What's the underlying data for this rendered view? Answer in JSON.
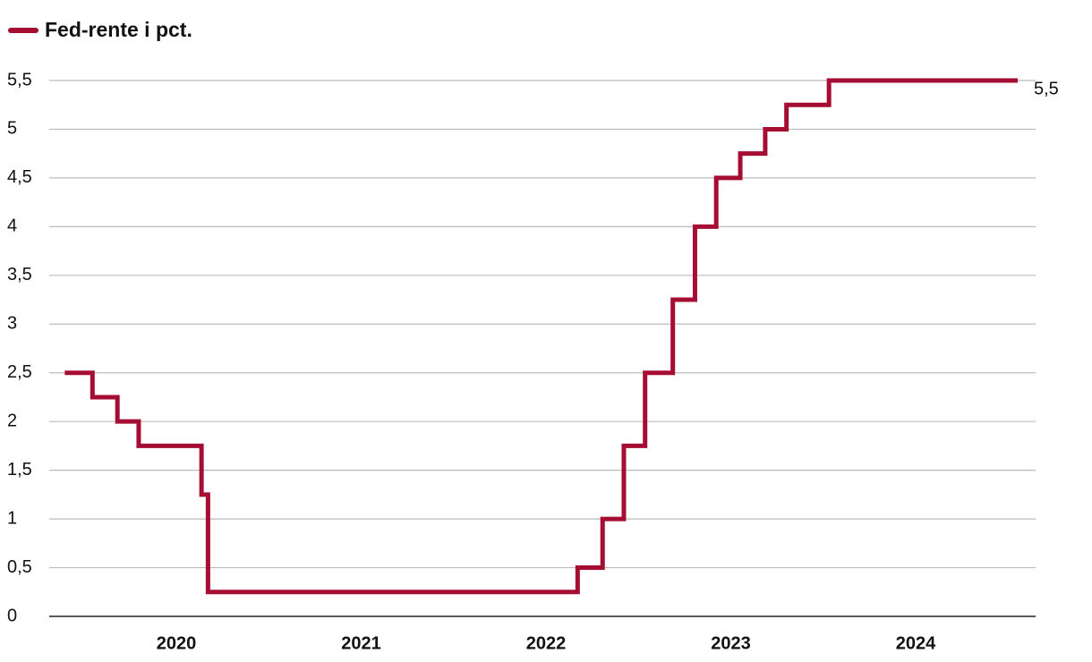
{
  "chart_data": {
    "type": "step-line",
    "x": [
      2019.43,
      2019.58,
      2019.715,
      2019.83,
      2020.17,
      2020.205,
      2022.205,
      2022.34,
      2022.455,
      2022.57,
      2022.72,
      2022.84,
      2022.955,
      2023.085,
      2023.22,
      2023.335,
      2023.565,
      2024.586
    ],
    "series": [
      {
        "name": "Fed-rente i pct.",
        "color": "#a50d32",
        "values": [
          2.5,
          2.25,
          2.0,
          1.75,
          1.25,
          0.25,
          0.5,
          1.0,
          1.75,
          2.5,
          3.25,
          4.0,
          4.5,
          4.75,
          5.0,
          5.25,
          5.5,
          5.5
        ],
        "value_labels": [
          null,
          null,
          null,
          null,
          null,
          null,
          null,
          null,
          null,
          null,
          null,
          null,
          null,
          null,
          null,
          null,
          null,
          "5,5"
        ]
      }
    ],
    "xlim": [
      2019.346,
      2024.683
    ],
    "xticks": [
      2020,
      2021,
      2022,
      2023,
      2024
    ],
    "ylim": [
      0,
      5.5
    ],
    "yticks": [
      0,
      {
        "value": 0.5,
        "label": "0,5"
      },
      1,
      {
        "value": 1.5,
        "label": "1,5"
      },
      2,
      {
        "value": 2.5,
        "label": "2,5"
      },
      3,
      {
        "value": 3.5,
        "label": "3,5"
      },
      4,
      {
        "value": 4.5,
        "label": "4,5"
      },
      5,
      {
        "value": 5.5,
        "label": "5,5"
      }
    ],
    "grid": true
  }
}
